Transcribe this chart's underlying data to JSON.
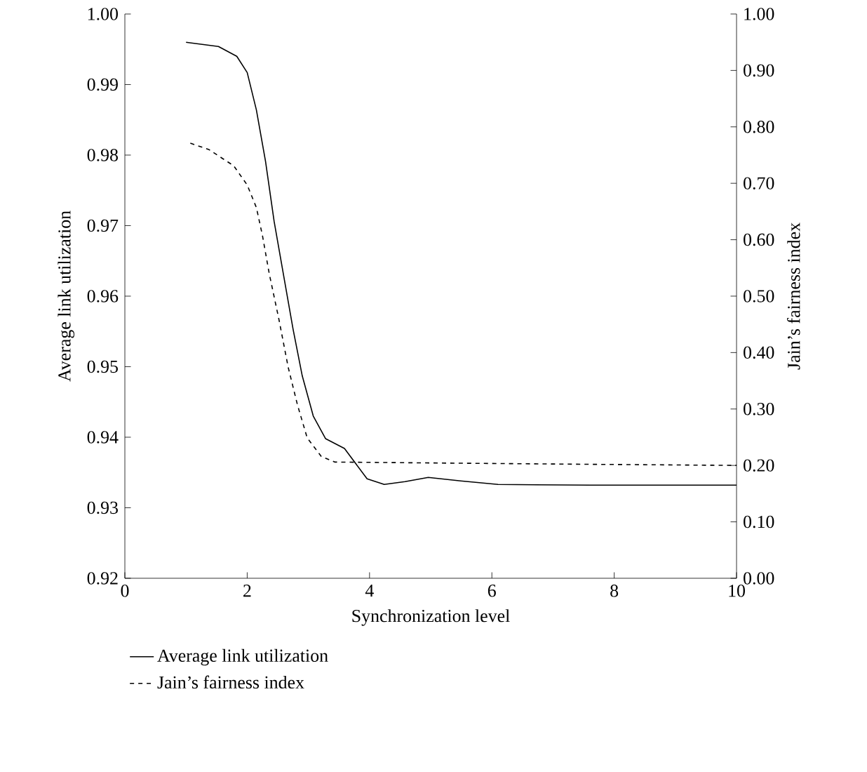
{
  "chart_data": {
    "type": "line",
    "xlabel": "Synchronization level",
    "ylabel": "Average link utilization",
    "y2label": "Jain’s fairness index",
    "xlim": [
      0,
      10
    ],
    "xticks": [
      0,
      2,
      4,
      6,
      8,
      10
    ],
    "ylim": [
      0.92,
      1.0
    ],
    "yticks": [
      {
        "value": 0.92,
        "label": "0.92"
      },
      {
        "value": 0.93,
        "label": "0.93"
      },
      {
        "value": 0.94,
        "label": "0.94"
      },
      {
        "value": 0.95,
        "label": "0.95"
      },
      {
        "value": 0.96,
        "label": "0.96"
      },
      {
        "value": 0.97,
        "label": "0.97"
      },
      {
        "value": 0.98,
        "label": "0.98"
      },
      {
        "value": 0.99,
        "label": "0.99"
      },
      {
        "value": 1.0,
        "label": "1.00"
      }
    ],
    "y2lim": [
      0,
      1
    ],
    "y2ticks": [
      {
        "value": 0,
        "label": "0.00"
      },
      {
        "value": 0.1,
        "label": "0.10"
      },
      {
        "value": 0.2,
        "label": "0.20"
      },
      {
        "value": 0.3,
        "label": "0.30"
      },
      {
        "value": 0.4,
        "label": "0.40"
      },
      {
        "value": 0.5,
        "label": "0.50"
      },
      {
        "value": 0.6,
        "label": "0.60"
      },
      {
        "value": 0.7,
        "label": "0.70"
      },
      {
        "value": 0.8,
        "label": "0.80"
      },
      {
        "value": 0.9,
        "label": "0.90"
      },
      {
        "value": 1.0,
        "label": "1.00"
      }
    ],
    "legend": "bottom",
    "marker": "none",
    "series": [
      {
        "name": "Average link utilization",
        "color": "#000000",
        "line_style": "solid",
        "x": [
          1.0,
          1.53,
          1.83,
          2.0,
          2.15,
          2.3,
          2.44,
          2.59,
          2.75,
          2.9,
          3.08,
          3.28,
          3.59,
          3.96,
          4.24,
          4.58,
          4.96,
          5.49,
          6.1,
          7.6,
          10
        ],
        "values": [
          0.996,
          0.9954,
          0.994,
          0.9917,
          0.9864,
          0.9791,
          0.9706,
          0.9632,
          0.9553,
          0.9487,
          0.943,
          0.9398,
          0.9384,
          0.9341,
          0.9333,
          0.9337,
          0.9343,
          0.9338,
          0.9333,
          0.9332,
          0.9332
        ]
      },
      {
        "name": "Jain’s fairness index",
        "color": "#000000",
        "line_style": "dashed",
        "axis": "y2",
        "x": [
          1.07,
          1.37,
          1.78,
          2.0,
          2.15,
          2.25,
          2.36,
          2.52,
          2.67,
          2.82,
          2.98,
          3.21,
          3.43,
          5.4,
          7.6,
          10
        ],
        "values": [
          0.771,
          0.76,
          0.731,
          0.697,
          0.657,
          0.607,
          0.54,
          0.458,
          0.374,
          0.308,
          0.249,
          0.216,
          0.206,
          0.204,
          0.202,
          0.2
        ]
      }
    ]
  }
}
